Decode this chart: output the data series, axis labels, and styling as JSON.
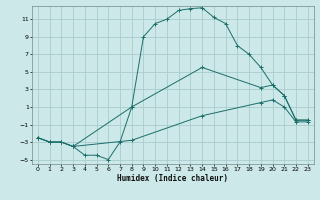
{
  "xlabel": "Humidex (Indice chaleur)",
  "bg_color": "#cce8e8",
  "grid_color": "#aacccc",
  "line_color": "#1a6e6a",
  "xlim": [
    -0.5,
    23.5
  ],
  "ylim": [
    -5.5,
    12.5
  ],
  "xticks": [
    0,
    1,
    2,
    3,
    4,
    5,
    6,
    7,
    8,
    9,
    10,
    11,
    12,
    13,
    14,
    15,
    16,
    17,
    18,
    19,
    20,
    21,
    22,
    23
  ],
  "yticks": [
    -5,
    -3,
    -1,
    1,
    3,
    5,
    7,
    9,
    11
  ],
  "line1_x": [
    0,
    1,
    2,
    3,
    4,
    5,
    6,
    7,
    8,
    9,
    10,
    11,
    12,
    13,
    14,
    15,
    16,
    17,
    18,
    19,
    20,
    21,
    22,
    23
  ],
  "line1_y": [
    -2.5,
    -3.0,
    -3.0,
    -3.5,
    -4.5,
    -4.5,
    -5.0,
    -3.0,
    1.0,
    9.0,
    10.5,
    11.0,
    12.0,
    12.2,
    12.3,
    11.2,
    10.5,
    8.0,
    7.0,
    5.5,
    3.5,
    2.3,
    -0.5,
    -0.5
  ],
  "line2_x": [
    0,
    1,
    2,
    3,
    8,
    14,
    19,
    20,
    21,
    22,
    23
  ],
  "line2_y": [
    -2.5,
    -3.0,
    -3.0,
    -3.5,
    1.0,
    5.5,
    3.2,
    3.5,
    2.3,
    -0.5,
    -0.5
  ],
  "line3_x": [
    0,
    1,
    2,
    3,
    8,
    14,
    19,
    20,
    21,
    22,
    23
  ],
  "line3_y": [
    -2.5,
    -3.0,
    -3.0,
    -3.5,
    -2.8,
    0.0,
    1.5,
    1.8,
    1.0,
    -0.7,
    -0.7
  ]
}
